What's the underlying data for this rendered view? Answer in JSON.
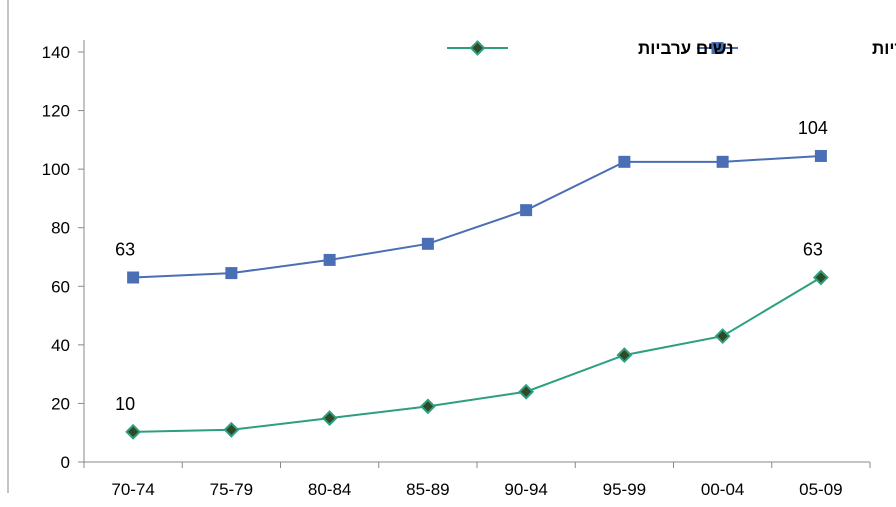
{
  "chart_data": {
    "type": "line",
    "title": "",
    "xlabel": "",
    "ylabel": "",
    "categories": [
      "70-74",
      "75-79",
      "80-84",
      "85-89",
      "90-94",
      "95-99",
      "00-04",
      "05-09"
    ],
    "ylim": [
      0,
      140
    ],
    "yticks": [
      "0",
      "20",
      "40",
      "60",
      "80",
      "100",
      "120",
      "140"
    ],
    "grid": false,
    "legend": "top-right",
    "series": [
      {
        "name": "נשים יהודיות",
        "values": [
          63,
          64.5,
          69,
          74.5,
          86,
          102.5,
          102.5,
          104.5
        ],
        "color": "#4a6fb5",
        "marker": "square",
        "labels": [
          {
            "index": 0,
            "text": "63"
          },
          {
            "index": 7,
            "text": "104"
          }
        ]
      },
      {
        "name": "נשים ערביות",
        "values": [
          10.3,
          11,
          15,
          19,
          24,
          36.5,
          43,
          63
        ],
        "color": "#2e9e80",
        "marker": "diamond",
        "labels": [
          {
            "index": 0,
            "text": "10"
          },
          {
            "index": 7,
            "text": "63"
          }
        ]
      }
    ]
  }
}
